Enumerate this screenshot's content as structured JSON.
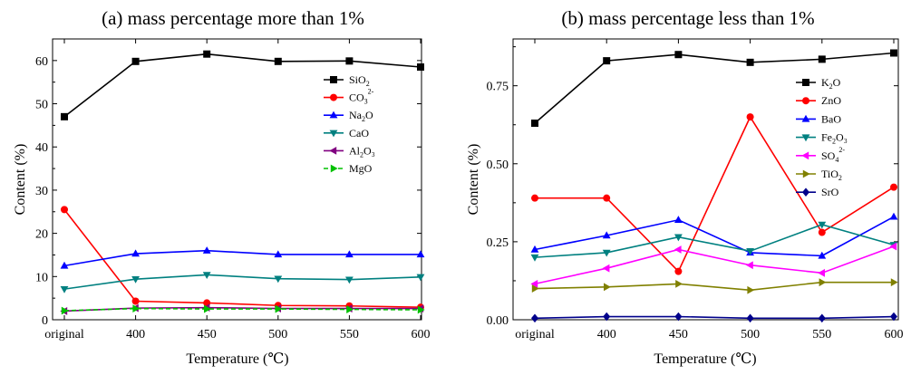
{
  "chart_data": [
    {
      "type": "line",
      "title": "(a) mass percentage more than 1%",
      "xlabel": "Temperature (℃)",
      "ylabel": "Content (%)",
      "categories": [
        "original",
        "400",
        "450",
        "500",
        "550",
        "600"
      ],
      "ylim": [
        0,
        65
      ],
      "yticks": [
        "0",
        "10",
        "20",
        "30",
        "40",
        "50",
        "60"
      ],
      "grid": false,
      "legend_position": "right",
      "series": [
        {
          "name": "SiO2",
          "label_main": "SiO",
          "label_sub": "2",
          "label_sup": "",
          "label_tail": "",
          "color": "#000000",
          "marker": "square",
          "dashed": false,
          "values": [
            47.0,
            59.8,
            61.5,
            59.8,
            59.9,
            58.5
          ]
        },
        {
          "name": "CO32-",
          "label_main": "CO",
          "label_sub": "3",
          "label_sup": "2-",
          "label_tail": "",
          "color": "#ff0000",
          "marker": "circle",
          "dashed": false,
          "values": [
            25.5,
            4.3,
            3.9,
            3.3,
            3.2,
            2.9
          ]
        },
        {
          "name": "Na2O",
          "label_main": "Na",
          "label_sub": "2",
          "label_sup": "",
          "label_tail": "O",
          "color": "#0000ff",
          "marker": "triangle-up",
          "dashed": false,
          "values": [
            12.5,
            15.3,
            16.0,
            15.1,
            15.1,
            15.1
          ]
        },
        {
          "name": "CaO",
          "label_main": "CaO",
          "label_sub": "",
          "label_sup": "",
          "label_tail": "",
          "color": "#008080",
          "marker": "triangle-down",
          "dashed": false,
          "values": [
            7.1,
            9.4,
            10.4,
            9.5,
            9.3,
            9.9
          ]
        },
        {
          "name": "Al2O3",
          "label_main": "Al",
          "label_sub": "2",
          "label_sup": "",
          "label_tail": "O₃",
          "color": "#800080",
          "marker": "triangle-left",
          "dashed": false,
          "values": [
            2.0,
            2.7,
            2.8,
            2.6,
            2.6,
            2.6
          ]
        },
        {
          "name": "MgO",
          "label_main": "MgO",
          "label_sub": "",
          "label_sup": "",
          "label_tail": "",
          "color": "#00c000",
          "marker": "triangle-right",
          "dashed": true,
          "values": [
            2.1,
            2.6,
            2.5,
            2.5,
            2.4,
            2.3
          ]
        }
      ]
    },
    {
      "type": "line",
      "title": "(b) mass percentage less than 1%",
      "xlabel": "Temperature (℃)",
      "ylabel": "Content (%)",
      "categories": [
        "original",
        "400",
        "450",
        "500",
        "550",
        "600"
      ],
      "ylim": [
        0,
        0.9
      ],
      "yticks": [
        "0.00",
        "0.25",
        "0.50",
        "0.75"
      ],
      "grid": false,
      "legend_position": "right",
      "series": [
        {
          "name": "K2O",
          "label_main": "K",
          "label_sub": "2",
          "label_sup": "",
          "label_tail": "O",
          "color": "#000000",
          "marker": "square",
          "dashed": false,
          "values": [
            0.63,
            0.83,
            0.85,
            0.825,
            0.835,
            0.855
          ]
        },
        {
          "name": "ZnO",
          "label_main": "ZnO",
          "label_sub": "",
          "label_sup": "",
          "label_tail": "",
          "color": "#ff0000",
          "marker": "circle",
          "dashed": false,
          "values": [
            0.39,
            0.39,
            0.155,
            0.65,
            0.28,
            0.425
          ]
        },
        {
          "name": "BaO",
          "label_main": "BaO",
          "label_sub": "",
          "label_sup": "",
          "label_tail": "",
          "color": "#0000ff",
          "marker": "triangle-up",
          "dashed": false,
          "values": [
            0.225,
            0.27,
            0.32,
            0.215,
            0.205,
            0.33
          ]
        },
        {
          "name": "Fe2O3",
          "label_main": "Fe",
          "label_sub": "2",
          "label_sup": "",
          "label_tail": "O₃",
          "color": "#008080",
          "marker": "triangle-down",
          "dashed": false,
          "values": [
            0.2,
            0.215,
            0.265,
            0.22,
            0.305,
            0.24
          ]
        },
        {
          "name": "SO42-",
          "label_main": "SO",
          "label_sub": "4",
          "label_sup": "2-",
          "label_tail": "",
          "color": "#ff00ff",
          "marker": "triangle-left",
          "dashed": false,
          "values": [
            0.115,
            0.165,
            0.225,
            0.175,
            0.15,
            0.235
          ]
        },
        {
          "name": "TiO2",
          "label_main": "TiO",
          "label_sub": "2",
          "label_sup": "",
          "label_tail": "",
          "color": "#808000",
          "marker": "triangle-right",
          "dashed": false,
          "values": [
            0.1,
            0.105,
            0.115,
            0.095,
            0.12,
            0.12
          ]
        },
        {
          "name": "SrO",
          "label_main": "SrO",
          "label_sub": "",
          "label_sup": "",
          "label_tail": "",
          "color": "#00008b",
          "marker": "diamond",
          "dashed": false,
          "values": [
            0.005,
            0.01,
            0.01,
            0.005,
            0.005,
            0.01
          ]
        }
      ]
    }
  ]
}
